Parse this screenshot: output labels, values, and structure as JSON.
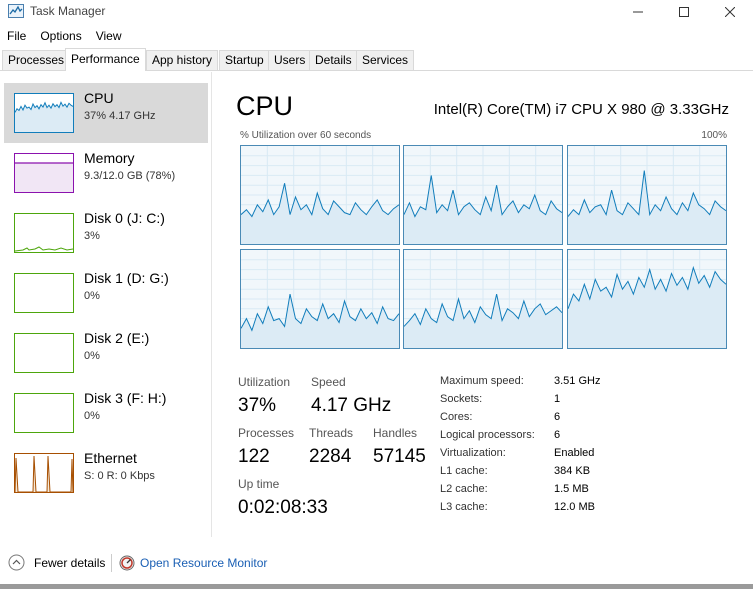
{
  "window": {
    "title": "Task Manager"
  },
  "menu": [
    "File",
    "Options",
    "View"
  ],
  "tabs": [
    "Processes",
    "Performance",
    "App history",
    "Startup",
    "Users",
    "Details",
    "Services"
  ],
  "active_tab": "Performance",
  "sidebar": [
    {
      "name": "CPU",
      "sub": "37%  4.17 GHz",
      "color": "#117dbb",
      "selected": true
    },
    {
      "name": "Memory",
      "sub": "9.3/12.0 GB (78%)",
      "color": "#8b12ae",
      "selected": false
    },
    {
      "name": "Disk 0 (J: C:)",
      "sub": "3%",
      "color": "#4da60c",
      "selected": false
    },
    {
      "name": "Disk 1 (D: G:)",
      "sub": "0%",
      "color": "#4da60c",
      "selected": false
    },
    {
      "name": "Disk 2 (E:)",
      "sub": "0%",
      "color": "#4da60c",
      "selected": false
    },
    {
      "name": "Disk 3 (F: H:)",
      "sub": "0%",
      "color": "#4da60c",
      "selected": false
    },
    {
      "name": "Ethernet",
      "sub": "S: 0  R: 0 Kbps",
      "color": "#a74f01",
      "selected": false
    }
  ],
  "cpu": {
    "heading": "CPU",
    "model": "Intel(R) Core(TM) i7 CPU X 980 @ 3.33GHz",
    "axis_left": "% Utilization over 60 seconds",
    "axis_right": "100%",
    "graph_color": "#117dbb",
    "stats": {
      "utilization_label": "Utilization",
      "utilization": "37%",
      "speed_label": "Speed",
      "speed": "4.17 GHz",
      "processes_label": "Processes",
      "processes": "122",
      "threads_label": "Threads",
      "threads": "2284",
      "handles_label": "Handles",
      "handles": "57145",
      "uptime_label": "Up time",
      "uptime": "0:02:08:33"
    },
    "info": [
      {
        "key": "Maximum speed:",
        "value": "3.51 GHz"
      },
      {
        "key": "Sockets:",
        "value": "1"
      },
      {
        "key": "Cores:",
        "value": "6"
      },
      {
        "key": "Logical processors:",
        "value": "6"
      },
      {
        "key": "Virtualization:",
        "value": "Enabled"
      },
      {
        "key": "L1 cache:",
        "value": "384 KB"
      },
      {
        "key": "L2 cache:",
        "value": "1.5 MB"
      },
      {
        "key": "L3 cache:",
        "value": "12.0 MB"
      }
    ],
    "core_levels": [
      [
        30,
        35,
        28,
        40,
        33,
        45,
        30,
        38,
        62,
        30,
        48,
        35,
        40,
        30,
        52,
        36,
        30,
        44,
        38,
        32,
        30,
        42,
        35,
        30,
        38,
        45,
        34,
        30,
        36,
        40
      ],
      [
        30,
        42,
        28,
        38,
        35,
        70,
        32,
        40,
        34,
        55,
        30,
        38,
        42,
        35,
        30,
        48,
        34,
        60,
        30,
        38,
        44,
        32,
        40,
        36,
        50,
        34,
        30,
        44,
        36,
        32
      ],
      [
        28,
        35,
        30,
        45,
        32,
        38,
        40,
        30,
        55,
        34,
        30,
        42,
        36,
        30,
        75,
        30,
        40,
        34,
        48,
        36,
        30,
        42,
        34,
        52,
        40,
        36,
        30,
        44,
        38,
        34
      ],
      [
        20,
        30,
        18,
        35,
        25,
        42,
        28,
        30,
        22,
        55,
        30,
        25,
        40,
        32,
        28,
        45,
        30,
        35,
        26,
        48,
        32,
        28,
        40,
        30,
        36,
        25,
        42,
        30,
        28,
        35
      ],
      [
        22,
        28,
        35,
        24,
        40,
        30,
        26,
        45,
        32,
        28,
        50,
        30,
        38,
        26,
        42,
        34,
        30,
        55,
        28,
        40,
        36,
        30,
        48,
        32,
        40,
        45,
        34,
        38,
        42,
        36
      ],
      [
        40,
        55,
        48,
        65,
        50,
        70,
        58,
        62,
        52,
        75,
        60,
        68,
        55,
        72,
        62,
        80,
        60,
        70,
        58,
        76,
        64,
        72,
        60,
        82,
        66,
        74,
        62,
        78,
        70,
        65
      ]
    ],
    "levels_unit": "percent"
  },
  "footer": {
    "fewer_details": "Fewer details",
    "resource_monitor": "Open Resource Monitor"
  }
}
